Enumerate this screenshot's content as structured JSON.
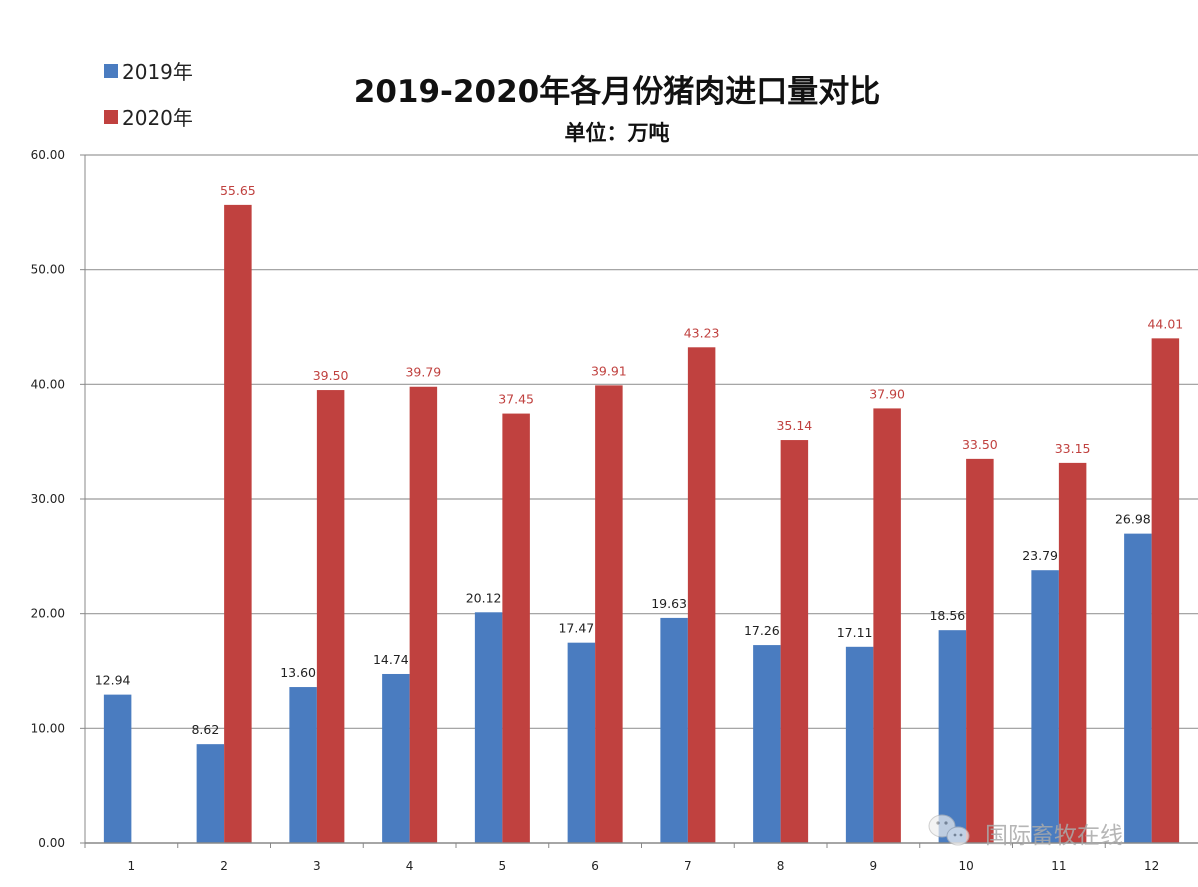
{
  "chart_data": {
    "type": "bar",
    "title": "2019-2020年各月份猪肉进口量对比",
    "subtitle": "单位：万吨",
    "xlabel": "",
    "ylabel": "",
    "categories": [
      "1",
      "2",
      "3",
      "4",
      "5",
      "6",
      "7",
      "8",
      "9",
      "10",
      "11",
      "12"
    ],
    "series": [
      {
        "name": "2019年",
        "color": "#4a7cc0",
        "values": [
          12.94,
          8.62,
          13.6,
          14.74,
          20.12,
          17.47,
          19.63,
          17.26,
          17.11,
          18.56,
          23.79,
          26.98
        ]
      },
      {
        "name": "2020年",
        "color": "#c0413f",
        "values": [
          null,
          55.65,
          39.5,
          39.79,
          37.45,
          39.91,
          43.23,
          35.14,
          37.9,
          33.5,
          33.15,
          44.01
        ]
      }
    ],
    "data_labels": {
      "2019年": [
        "12.94",
        "8.62",
        "13.60",
        "14.74",
        "20.12",
        "17.47",
        "19.63",
        "17.26",
        "17.11",
        "18.56",
        "23.79",
        "26.98"
      ],
      "2020年": [
        "",
        "55.65",
        "39.50",
        "39.79",
        "37.45",
        "39.91",
        "43.23",
        "35.14",
        "37.90",
        "33.50",
        "33.15",
        "44.01"
      ]
    },
    "ylim": [
      0,
      60
    ],
    "yticks": [
      "0.00",
      "10.00",
      "20.00",
      "30.00",
      "40.00",
      "50.00",
      "60.00"
    ],
    "grid": true,
    "legend_position": "top-left"
  },
  "watermark": {
    "text": "国际畜牧在线",
    "icon": "wechat-icon"
  }
}
